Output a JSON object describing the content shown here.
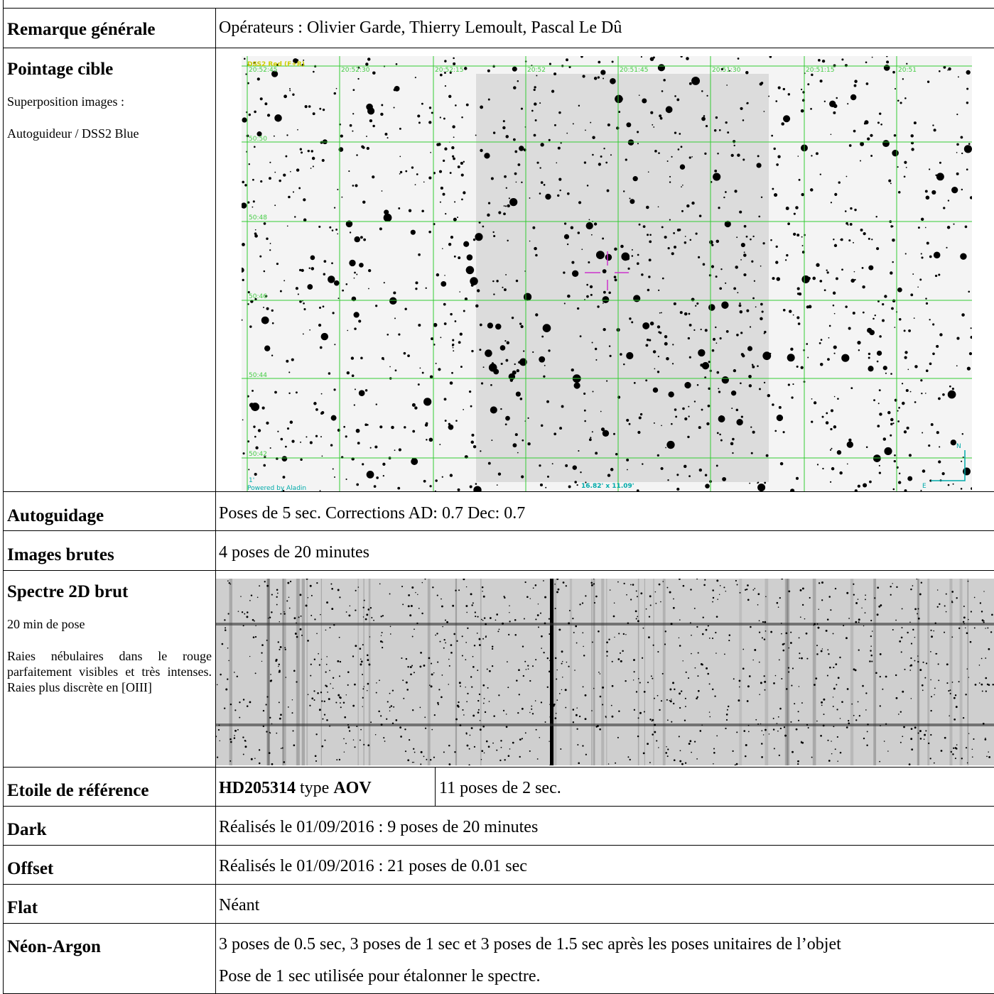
{
  "rows": {
    "remarque": {
      "label": "Remarque générale",
      "text": "Opérateurs : Olivier Garde, Thierry Lemoult, Pascal Le Dû"
    },
    "pointage": {
      "label": "Pointage cible",
      "notes": [
        "Superposition images :",
        "Autoguideur / DSS2 Blue"
      ],
      "image": {
        "survey": "DSS2 Red (F+R)",
        "ra_labels": [
          "20:52:45",
          "20:52:30",
          "20:52:15",
          "20:52",
          "20:51:45",
          "20:51:30",
          "20:51:15",
          "20:51"
        ],
        "dec_labels": [
          "50:50",
          "50:48",
          "50:46",
          "50:44",
          "50:42"
        ],
        "scale": "1'",
        "credit": "Powered by Aladin",
        "fov": "16.82' x 11.09'",
        "north": "N",
        "east": "E"
      }
    },
    "autoguidage": {
      "label": "Autoguidage",
      "text": "Poses de 5 sec. Corrections AD: 0.7 Dec: 0.7"
    },
    "images": {
      "label": "Images brutes",
      "text": "4 poses de 20 minutes"
    },
    "spectre": {
      "label": "Spectre 2D brut",
      "notes": [
        "20 min de pose",
        "Raies nébulaires dans le rouge parfaitement visibles et très intenses. Raies plus discrète en [OIII]"
      ]
    },
    "etoile": {
      "label": "Etoile de référence",
      "star": "HD205314",
      "type_word": "type",
      "spectral_type": "AOV",
      "text": "11 poses de 2 sec."
    },
    "dark": {
      "label": "Dark",
      "text": "Réalisés le 01/09/2016 : 9 poses de 20 minutes"
    },
    "offset": {
      "label": "Offset",
      "text": "Réalisés le 01/09/2016 : 21 poses de 0.01 sec"
    },
    "flat": {
      "label": "Flat",
      "text": "Néant"
    },
    "neon": {
      "label": "Néon-Argon",
      "lines": [
        "3 poses de 0.5 sec, 3 poses de 1 sec et 3 poses de 1.5 sec après les poses unitaires de l’objet",
        "Pose de 1 sec utilisée pour étalonner le spectre."
      ]
    }
  }
}
